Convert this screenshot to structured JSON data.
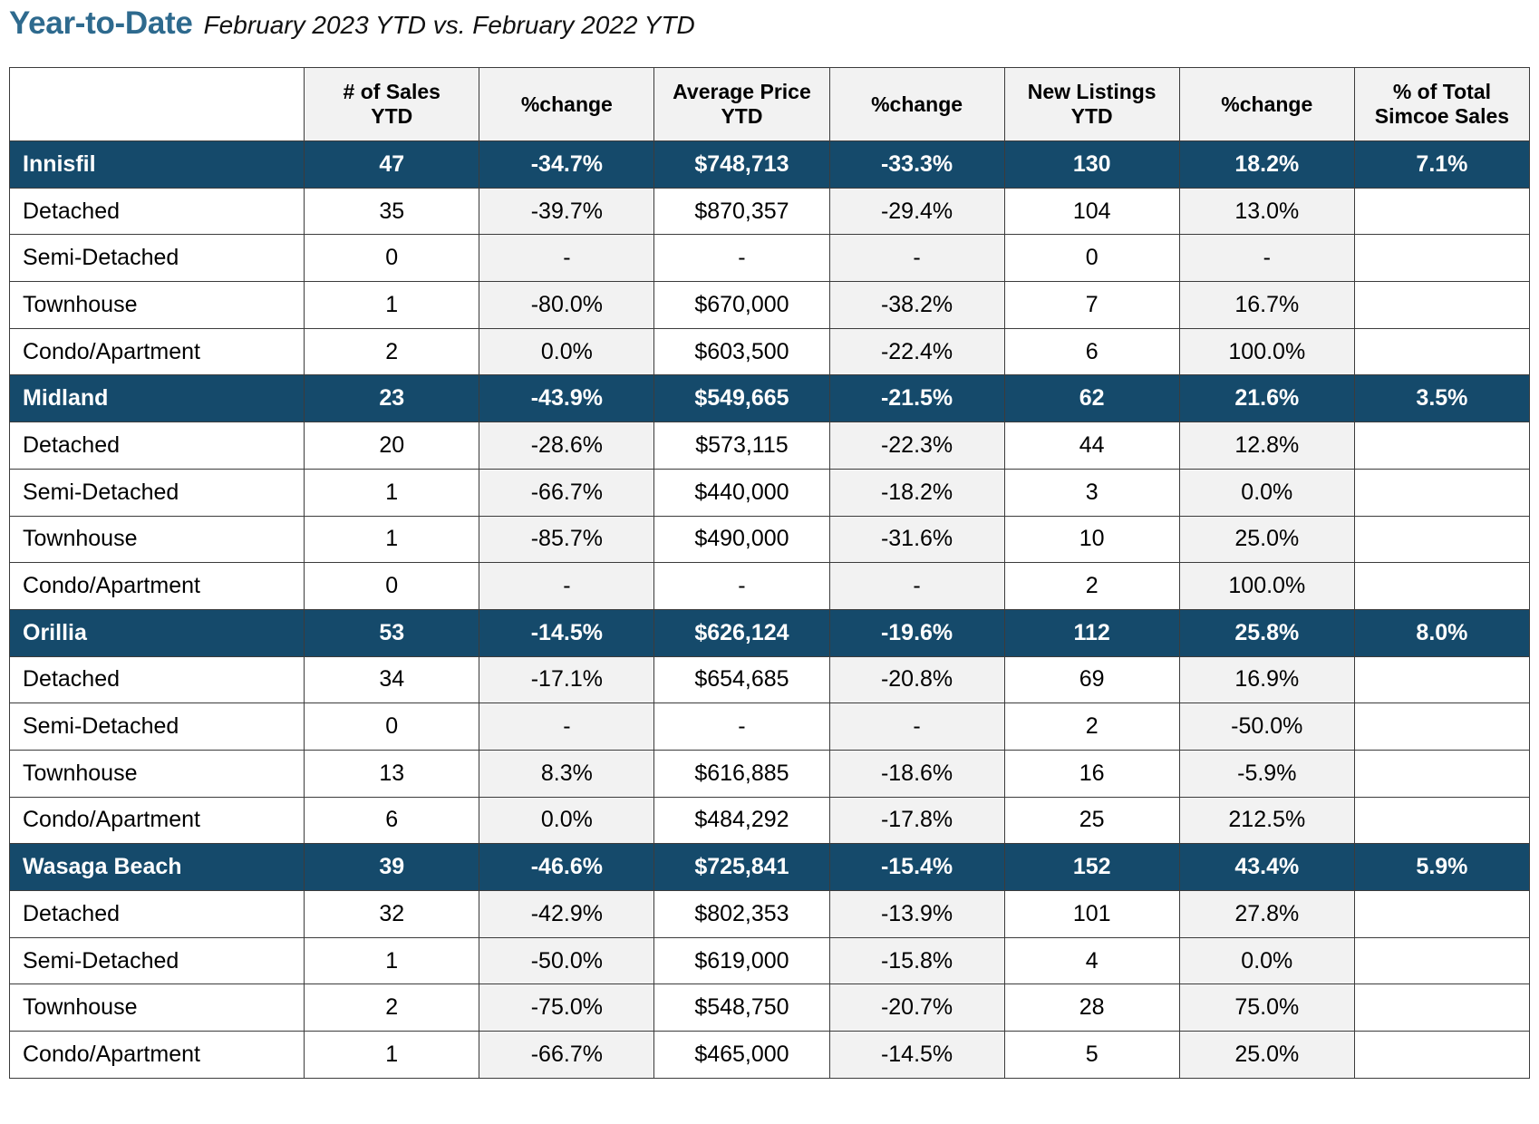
{
  "title": {
    "main": "Year-to-Date",
    "subtitle": "February 2023 YTD vs. February 2022 YTD"
  },
  "table": {
    "headers": [
      "",
      [
        "# of Sales",
        "YTD"
      ],
      [
        "%change"
      ],
      [
        "Average Price",
        "YTD"
      ],
      [
        "%change"
      ],
      [
        "New Listings",
        "YTD"
      ],
      [
        "%change"
      ],
      [
        "% of Total",
        "Simcoe Sales"
      ]
    ],
    "regions": [
      {
        "name": "Innisfil",
        "sales": "47",
        "sales_change": "-34.7%",
        "avg_price": "$748,713",
        "price_change": "-33.3%",
        "listings": "130",
        "listings_change": "18.2%",
        "share": "7.1%",
        "rows": [
          {
            "type": "Detached",
            "sales": "35",
            "sales_change": "-39.7%",
            "avg_price": "$870,357",
            "price_change": "-29.4%",
            "listings": "104",
            "listings_change": "13.0%"
          },
          {
            "type": "Semi-Detached",
            "sales": "0",
            "sales_change": "-",
            "avg_price": "-",
            "price_change": "-",
            "listings": "0",
            "listings_change": "-"
          },
          {
            "type": "Townhouse",
            "sales": "1",
            "sales_change": "-80.0%",
            "avg_price": "$670,000",
            "price_change": "-38.2%",
            "listings": "7",
            "listings_change": "16.7%"
          },
          {
            "type": "Condo/Apartment",
            "sales": "2",
            "sales_change": "0.0%",
            "avg_price": "$603,500",
            "price_change": "-22.4%",
            "listings": "6",
            "listings_change": "100.0%"
          }
        ]
      },
      {
        "name": "Midland",
        "sales": "23",
        "sales_change": "-43.9%",
        "avg_price": "$549,665",
        "price_change": "-21.5%",
        "listings": "62",
        "listings_change": "21.6%",
        "share": "3.5%",
        "rows": [
          {
            "type": "Detached",
            "sales": "20",
            "sales_change": "-28.6%",
            "avg_price": "$573,115",
            "price_change": "-22.3%",
            "listings": "44",
            "listings_change": "12.8%"
          },
          {
            "type": "Semi-Detached",
            "sales": "1",
            "sales_change": "-66.7%",
            "avg_price": "$440,000",
            "price_change": "-18.2%",
            "listings": "3",
            "listings_change": "0.0%"
          },
          {
            "type": "Townhouse",
            "sales": "1",
            "sales_change": "-85.7%",
            "avg_price": "$490,000",
            "price_change": "-31.6%",
            "listings": "10",
            "listings_change": "25.0%"
          },
          {
            "type": "Condo/Apartment",
            "sales": "0",
            "sales_change": "-",
            "avg_price": "-",
            "price_change": "-",
            "listings": "2",
            "listings_change": "100.0%"
          }
        ]
      },
      {
        "name": "Orillia",
        "sales": "53",
        "sales_change": "-14.5%",
        "avg_price": "$626,124",
        "price_change": "-19.6%",
        "listings": "112",
        "listings_change": "25.8%",
        "share": "8.0%",
        "rows": [
          {
            "type": "Detached",
            "sales": "34",
            "sales_change": "-17.1%",
            "avg_price": "$654,685",
            "price_change": "-20.8%",
            "listings": "69",
            "listings_change": "16.9%"
          },
          {
            "type": "Semi-Detached",
            "sales": "0",
            "sales_change": "-",
            "avg_price": "-",
            "price_change": "-",
            "listings": "2",
            "listings_change": "-50.0%"
          },
          {
            "type": "Townhouse",
            "sales": "13",
            "sales_change": "8.3%",
            "avg_price": "$616,885",
            "price_change": "-18.6%",
            "listings": "16",
            "listings_change": "-5.9%"
          },
          {
            "type": "Condo/Apartment",
            "sales": "6",
            "sales_change": "0.0%",
            "avg_price": "$484,292",
            "price_change": "-17.8%",
            "listings": "25",
            "listings_change": "212.5%"
          }
        ]
      },
      {
        "name": "Wasaga Beach",
        "sales": "39",
        "sales_change": "-46.6%",
        "avg_price": "$725,841",
        "price_change": "-15.4%",
        "listings": "152",
        "listings_change": "43.4%",
        "share": "5.9%",
        "rows": [
          {
            "type": "Detached",
            "sales": "32",
            "sales_change": "-42.9%",
            "avg_price": "$802,353",
            "price_change": "-13.9%",
            "listings": "101",
            "listings_change": "27.8%"
          },
          {
            "type": "Semi-Detached",
            "sales": "1",
            "sales_change": "-50.0%",
            "avg_price": "$619,000",
            "price_change": "-15.8%",
            "listings": "4",
            "listings_change": "0.0%"
          },
          {
            "type": "Townhouse",
            "sales": "2",
            "sales_change": "-75.0%",
            "avg_price": "$548,750",
            "price_change": "-20.7%",
            "listings": "28",
            "listings_change": "75.0%"
          },
          {
            "type": "Condo/Apartment",
            "sales": "1",
            "sales_change": "-66.7%",
            "avg_price": "$465,000",
            "price_change": "-14.5%",
            "listings": "5",
            "listings_change": "25.0%"
          }
        ]
      }
    ]
  },
  "colors": {
    "title": "#2e6a8e",
    "region_row_bg": "#154a6b",
    "region_row_text": "#ffffff",
    "shaded_cell": "#f2f2f2",
    "border": "#3c3c3c"
  }
}
